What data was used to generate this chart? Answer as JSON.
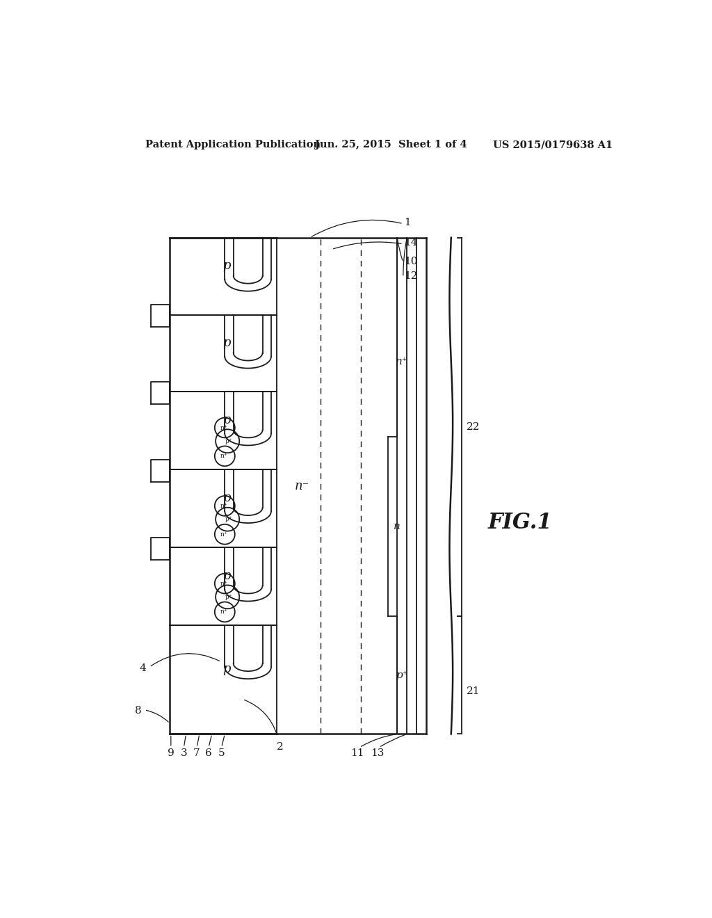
{
  "title_left": "Patent Application Publication",
  "title_mid": "Jun. 25, 2015  Sheet 1 of 4",
  "title_right": "US 2015/0179638 A1",
  "fig_label": "FIG.1",
  "background": "#ffffff",
  "lc": "#1a1a1a"
}
